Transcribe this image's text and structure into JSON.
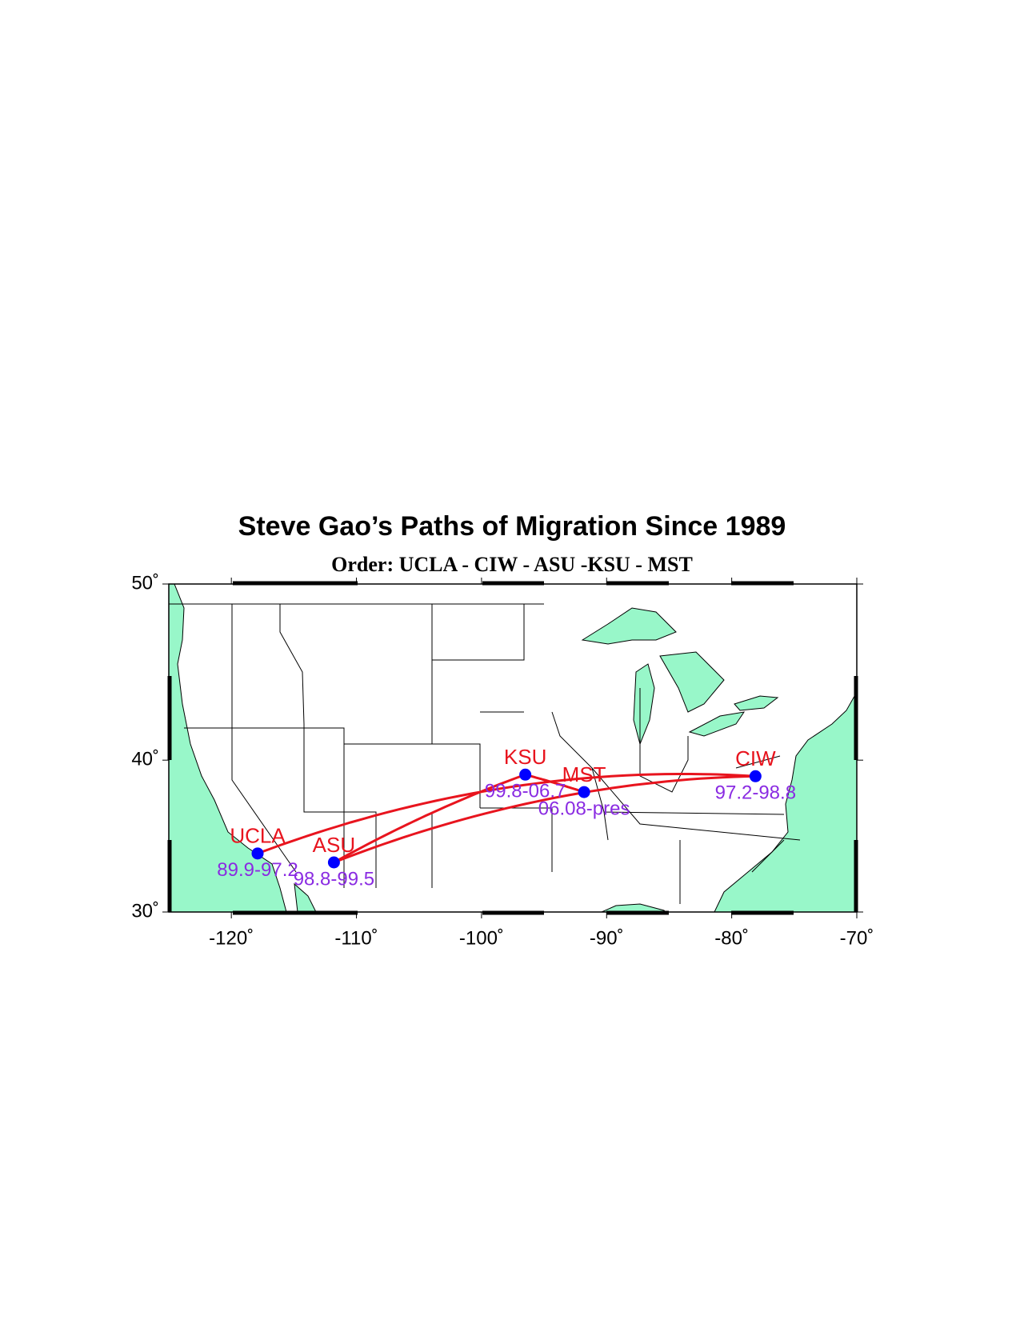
{
  "title": "Steve Gao’s Paths of Migration Since 1989",
  "subtitle": "Order: UCLA - CIW - ASU -KSU - MST",
  "map": {
    "projection": "mercator",
    "xlim": [
      -125,
      -70
    ],
    "ylim": [
      30,
      50
    ],
    "xticks": [
      {
        "value": -120,
        "label": "-120˚"
      },
      {
        "value": -110,
        "label": "-110˚"
      },
      {
        "value": -100,
        "label": "-100˚"
      },
      {
        "value": -90,
        "label": "-90˚"
      },
      {
        "value": -80,
        "label": "-80˚"
      },
      {
        "value": -70,
        "label": "-70˚"
      }
    ],
    "yticks": [
      {
        "value": 30,
        "label": "30˚"
      },
      {
        "value": 40,
        "label": "40˚"
      },
      {
        "value": 50,
        "label": "50˚"
      }
    ],
    "path_color": "#e8141e",
    "station_color": "#0000ff",
    "name_color": "#e8141e",
    "period_color": "#8a2be2",
    "stations": [
      {
        "name": "UCLA",
        "period": "89.9-97.2",
        "lon": -117.9,
        "lat": 34.0
      },
      {
        "name": "CIW",
        "period": "97.2-98.8",
        "lon": -78.1,
        "lat": 39.0
      },
      {
        "name": "ASU",
        "period": "98.8-99.5",
        "lon": -111.8,
        "lat": 33.4
      },
      {
        "name": "KSU",
        "period": "99.8-06.7",
        "lon": -96.5,
        "lat": 39.1
      },
      {
        "name": "MST",
        "period": "06.08-pres",
        "lon": -91.8,
        "lat": 38.0
      }
    ]
  }
}
